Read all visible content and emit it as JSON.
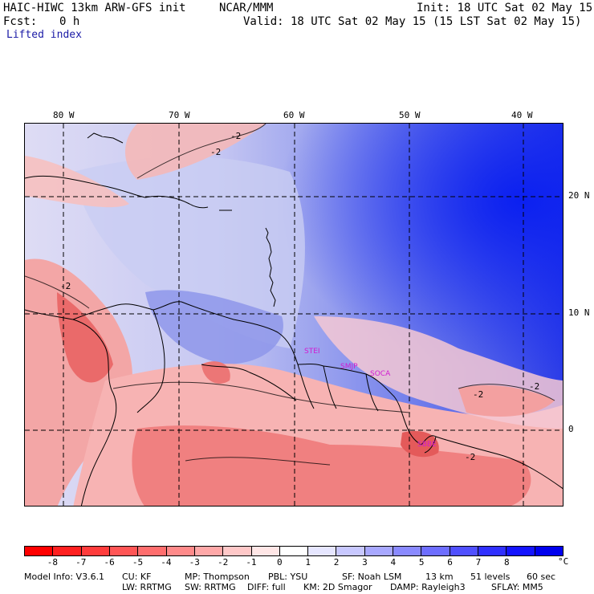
{
  "header": {
    "title": "HAIC-HIWC 13km ARW-GFS init",
    "org": "NCAR/MMM",
    "init": "Init: 18 UTC Sat 02 May 15",
    "fcst_label": "Fcst:",
    "fcst_value": "0 h",
    "valid": "Valid: 18 UTC Sat 02 May 15 (15 LST Sat 02 May 15)",
    "field": "Lifted index"
  },
  "map": {
    "lon_labels": [
      "80 W",
      "70 W",
      "60 W",
      "50 W",
      "40 W"
    ],
    "lat_labels": [
      "20 N",
      "10 N",
      "0"
    ],
    "contour_labels": [
      "-2",
      "-2",
      "-2",
      "-2",
      "-2",
      "-2"
    ],
    "cities": [
      "STEI",
      "SMJP",
      "SOCA",
      "SBBE"
    ],
    "colors": {
      "border": "#000000",
      "gridline": "#000000",
      "city_label": "#d11ad1"
    }
  },
  "colorbar": {
    "unit": "°C",
    "tick_labels": [
      "-8",
      "-7",
      "-6",
      "-5",
      "-4",
      "-3",
      "-2",
      "-1",
      "0",
      "1",
      "2",
      "3",
      "4",
      "5",
      "6",
      "7",
      "8"
    ],
    "colors": [
      "#ff0000",
      "#ff2020",
      "#ff3c3c",
      "#ff5555",
      "#ff6e6e",
      "#ff8a8a",
      "#ffa8a8",
      "#ffc8c8",
      "#ffe6e6",
      "#ffffff",
      "#e6e6ff",
      "#c8c8ff",
      "#a8a8ff",
      "#8a8aff",
      "#6e6eff",
      "#5050ff",
      "#3030ff",
      "#1414ff",
      "#0000ee"
    ]
  },
  "footer": {
    "line1": [
      "Model Info: V3.6.1",
      "CU: KF",
      "MP: Thompson",
      "PBL: YSU",
      "SF: Noah LSM",
      "13 km",
      "51 levels",
      "60 sec"
    ],
    "line2": [
      "LW: RRTMG",
      "SW: RRTMG",
      "DIFF: full",
      "KM: 2D Smagor",
      "DAMP: Rayleigh3",
      "SFLAY: MM5"
    ]
  }
}
